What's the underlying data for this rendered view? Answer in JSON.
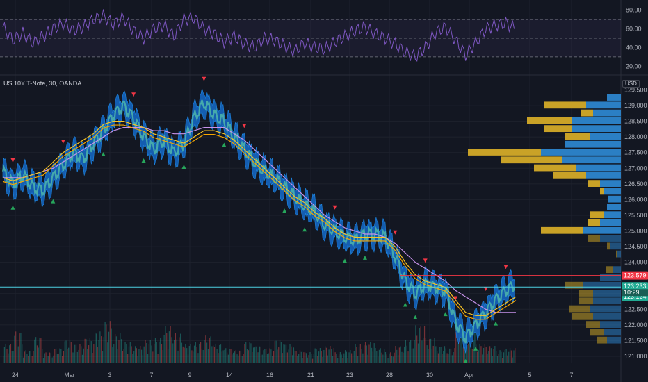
{
  "header": {
    "symbol": "US 10Y T-Note, 30, OANDA",
    "currency": "USD"
  },
  "colors": {
    "background": "#131722",
    "grid": "#1e222d",
    "rsi": "#7e57c2",
    "rsi_band": "#7e57c2",
    "ma_fast": "#f7c325",
    "ma_mid": "#f7a600",
    "ma_slow": "#c792ea",
    "candle_band": "#1565c0",
    "candle_fill": "#4db6ac",
    "vp_up": "#2b7fc4",
    "vp_down": "#c9a227",
    "down_arrow": "#f23645",
    "up_arrow": "#26a65b",
    "price_current": "#22ab94",
    "price_red": "#f23645",
    "hline_cyan": "#4dd0e1"
  },
  "chart_data": {
    "type": "line",
    "x_ticks": [
      "24",
      "Mar",
      "3",
      "7",
      "9",
      "14",
      "16",
      "21",
      "23",
      "28",
      "30",
      "Apr",
      "5",
      "7"
    ],
    "y_ticks": [
      "121.000",
      "121.500",
      "122.000",
      "122.500",
      "123.000",
      "124.000",
      "124.500",
      "125.000",
      "125.500",
      "126.000",
      "126.500",
      "127.000",
      "127.500",
      "128.000",
      "128.500",
      "129.000",
      "129.500"
    ],
    "ylim": [
      120.8,
      129.6
    ],
    "price": [
      126.9,
      126.5,
      126.8,
      126.4,
      126.3,
      126.7,
      127.1,
      127.5,
      127.3,
      127.8,
      128.2,
      128.7,
      129.0,
      128.6,
      128.0,
      127.6,
      127.9,
      127.5,
      127.8,
      128.6,
      129.1,
      128.7,
      128.5,
      128.0,
      127.6,
      127.2,
      126.9,
      126.7,
      126.4,
      126.1,
      125.8,
      125.6,
      125.2,
      125.0,
      124.8,
      124.7,
      124.9,
      124.9,
      124.8,
      124.2,
      123.4,
      123.0,
      123.3,
      123.2,
      123.1,
      122.1,
      121.6,
      122.0,
      122.4,
      122.8,
      123.1,
      123.3
    ],
    "ma_fast": [
      126.7,
      126.6,
      126.7,
      126.8,
      126.9,
      127.2,
      127.5,
      127.7,
      127.9,
      128.1,
      128.4,
      128.5,
      128.5,
      128.4,
      128.3,
      128.1,
      128.0,
      127.9,
      127.8,
      128.0,
      128.2,
      128.2,
      128.1,
      127.9,
      127.6,
      127.3,
      127.0,
      126.7,
      126.4,
      126.1,
      125.9,
      125.6,
      125.4,
      125.1,
      124.9,
      124.8,
      124.8,
      124.8,
      124.8,
      124.5,
      124.0,
      123.6,
      123.4,
      123.3,
      123.2,
      122.8,
      122.4,
      122.3,
      122.3,
      122.5,
      122.7,
      122.9
    ],
    "ma_slow": [
      126.7,
      126.7,
      126.7,
      126.8,
      126.9,
      127.0,
      127.2,
      127.4,
      127.6,
      127.8,
      128.0,
      128.2,
      128.3,
      128.3,
      128.3,
      128.2,
      128.2,
      128.1,
      128.1,
      128.2,
      128.3,
      128.3,
      128.3,
      128.1,
      127.9,
      127.6,
      127.3,
      127.0,
      126.7,
      126.4,
      126.1,
      125.8,
      125.5,
      125.3,
      125.1,
      125.0,
      124.9,
      124.9,
      124.8,
      124.6,
      124.3,
      124.0,
      123.8,
      123.6,
      123.4,
      123.1,
      122.9,
      122.7,
      122.5,
      122.4,
      122.4,
      122.4
    ],
    "rsi": {
      "ticks": [
        "20.00",
        "40.00",
        "60.00",
        "80.00"
      ],
      "upper": 70,
      "lower": 30,
      "ylim": [
        15,
        85
      ],
      "values": [
        62,
        48,
        55,
        45,
        52,
        60,
        66,
        58,
        62,
        70,
        74,
        65,
        72,
        58,
        50,
        60,
        64,
        52,
        70,
        72,
        60,
        55,
        46,
        52,
        44,
        40,
        50,
        48,
        42,
        36,
        45,
        40,
        38,
        46,
        52,
        58,
        62,
        55,
        50,
        44,
        35,
        30,
        40,
        56,
        62,
        48,
        32,
        45,
        60,
        64,
        66,
        60
      ]
    },
    "volume": [
      18,
      30,
      12,
      25,
      10,
      14,
      22,
      18,
      24,
      30,
      40,
      28,
      20,
      16,
      22,
      24,
      35,
      28,
      18,
      20,
      26,
      18,
      14,
      12,
      20,
      16,
      14,
      22,
      18,
      12,
      10,
      14,
      16,
      10,
      12,
      18,
      20,
      14,
      10,
      16,
      22,
      36,
      24,
      16,
      14,
      30,
      28,
      18,
      16,
      12,
      14,
      10
    ],
    "volume_profile": [
      {
        "price": 129.25,
        "up": 20,
        "down": 0
      },
      {
        "price": 129.0,
        "up": 50,
        "down": 60
      },
      {
        "price": 128.75,
        "up": 40,
        "down": 18
      },
      {
        "price": 128.5,
        "up": 70,
        "down": 65
      },
      {
        "price": 128.25,
        "up": 70,
        "down": 40
      },
      {
        "price": 128.0,
        "up": 45,
        "down": 35
      },
      {
        "price": 127.75,
        "up": 80,
        "down": 0
      },
      {
        "price": 127.5,
        "up": 115,
        "down": 105
      },
      {
        "price": 127.25,
        "up": 85,
        "down": 88
      },
      {
        "price": 127.0,
        "up": 65,
        "down": 60
      },
      {
        "price": 126.75,
        "up": 50,
        "down": 48
      },
      {
        "price": 126.5,
        "up": 30,
        "down": 18
      },
      {
        "price": 126.25,
        "up": 25,
        "down": 5
      },
      {
        "price": 126.0,
        "up": 18,
        "down": 0
      },
      {
        "price": 125.75,
        "up": 20,
        "down": 0
      },
      {
        "price": 125.5,
        "up": 25,
        "down": 20
      },
      {
        "price": 125.25,
        "up": 30,
        "down": 18
      },
      {
        "price": 125.0,
        "up": 55,
        "down": 60
      },
      {
        "price": 124.75,
        "up": 30,
        "down": 18
      },
      {
        "price": 124.5,
        "up": 15,
        "down": 5
      },
      {
        "price": 124.25,
        "up": 5,
        "down": 2
      },
      {
        "price": 123.75,
        "up": 12,
        "down": 10
      },
      {
        "price": 123.5,
        "up": 30,
        "down": 0
      },
      {
        "price": 123.25,
        "up": 55,
        "down": 25
      },
      {
        "price": 123.0,
        "up": 40,
        "down": 20
      },
      {
        "price": 122.75,
        "up": 40,
        "down": 20
      },
      {
        "price": 122.5,
        "up": 45,
        "down": 30
      },
      {
        "price": 122.25,
        "up": 40,
        "down": 30
      },
      {
        "price": 122.0,
        "up": 30,
        "down": 20
      },
      {
        "price": 121.75,
        "up": 25,
        "down": 20
      },
      {
        "price": 121.5,
        "up": 20,
        "down": 15
      }
    ],
    "levels": [
      {
        "price": 123.579,
        "label": "123.579",
        "color": "#f23645"
      },
      {
        "price": 123.233,
        "label": "123.233",
        "color": "#22ab94"
      },
      {
        "price": 123.124,
        "label": "123.124",
        "color": "#22ab94"
      }
    ],
    "countdown": "10:29",
    "down_signals": [
      1,
      6,
      13,
      20,
      24,
      33,
      39,
      42,
      45,
      48,
      50
    ],
    "up_signals": [
      1,
      5,
      10,
      14,
      18,
      22,
      28,
      30,
      34,
      36,
      40,
      41,
      44,
      46,
      47,
      49
    ]
  }
}
